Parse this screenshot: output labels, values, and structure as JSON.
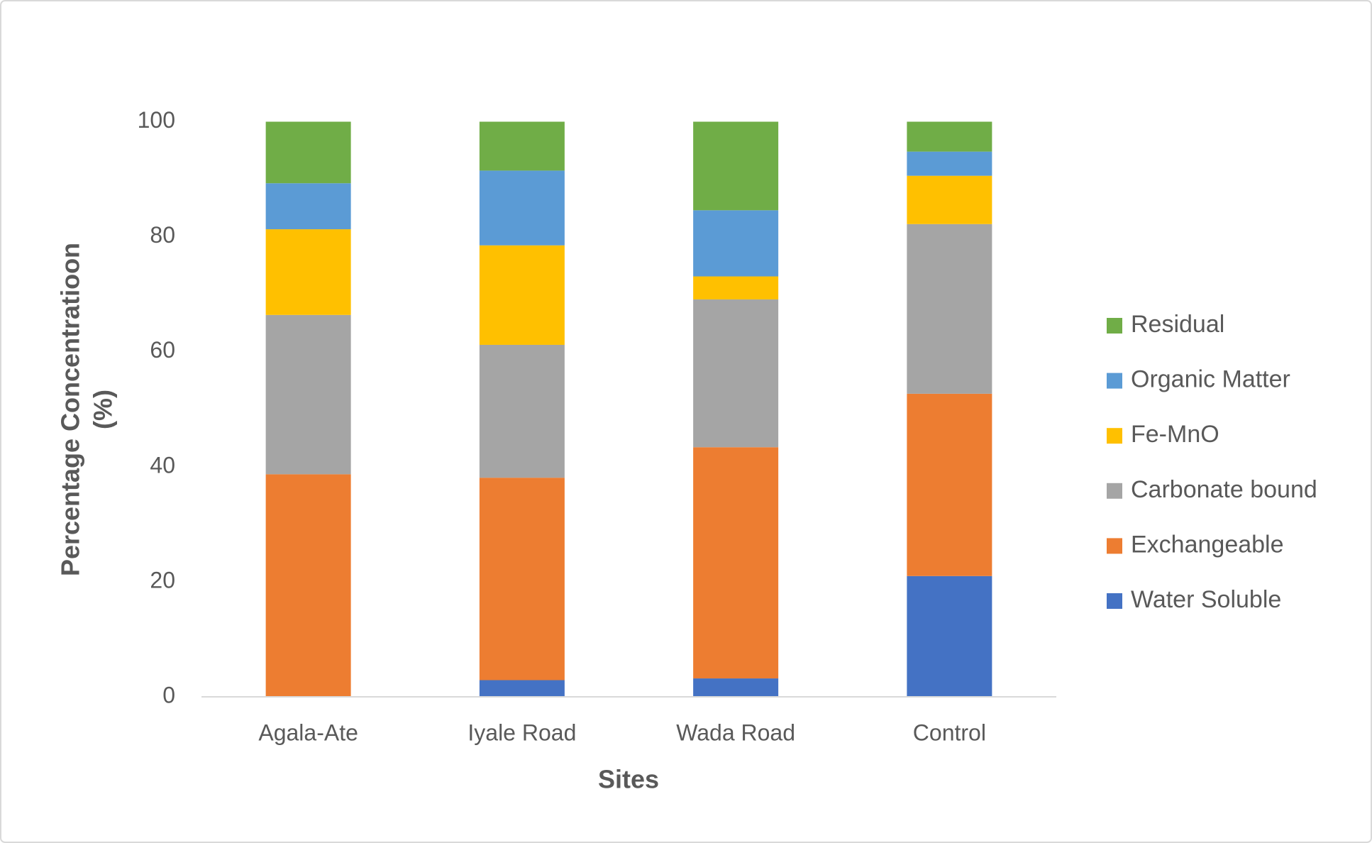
{
  "chart_data": {
    "type": "stacked_bar",
    "xlabel": "Sites",
    "ylabel": [
      "Percentage Concentratioon",
      "(%)"
    ],
    "categories": [
      "Agala-Ate",
      "Iyale Road",
      "Wada Road",
      "Control"
    ],
    "series": [
      {
        "name": "Water Soluble",
        "color": "#4472c4",
        "values": [
          0,
          2.9,
          3.2,
          21.0
        ]
      },
      {
        "name": "Exchangeable",
        "color": "#ed7d31",
        "values": [
          38.7,
          35.2,
          40.2,
          31.7
        ]
      },
      {
        "name": "Carbonate bound",
        "color": "#a5a5a5",
        "values": [
          27.7,
          23.1,
          25.7,
          29.5
        ]
      },
      {
        "name": "Fe-MnO",
        "color": "#ffc000",
        "values": [
          14.9,
          17.3,
          4.0,
          8.4
        ]
      },
      {
        "name": "Organic Matter",
        "color": "#5b9bd5",
        "values": [
          8.0,
          13.0,
          11.5,
          4.2
        ]
      },
      {
        "name": "Residual",
        "color": "#70ad47",
        "values": [
          10.7,
          8.5,
          15.4,
          5.2
        ]
      }
    ],
    "ylim": [
      0,
      100
    ],
    "yticks": [
      0,
      20,
      40,
      60,
      80,
      100
    ],
    "grid": false,
    "legend": "right"
  }
}
